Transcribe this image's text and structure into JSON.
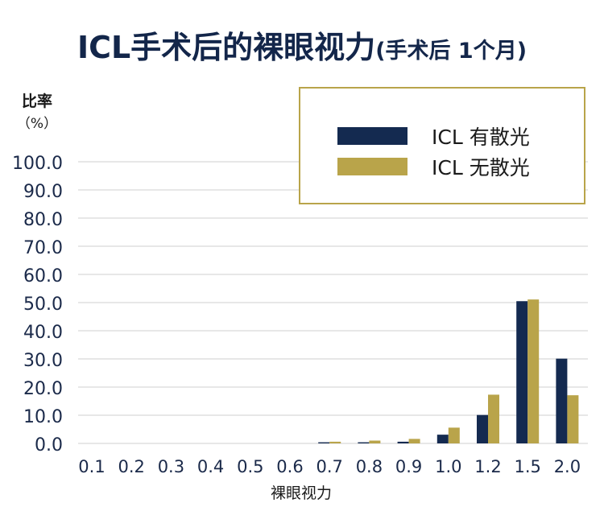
{
  "chart_data": {
    "type": "bar",
    "title": "ICL手术后的裸眼视力",
    "subtitle": "(手术后 1个月)",
    "ylabel": "比率",
    "yunit": "（%）",
    "xlabel": "裸眼视力",
    "categories": [
      "0.1",
      "0.2",
      "0.3",
      "0.4",
      "0.5",
      "0.6",
      "0.7",
      "0.8",
      "0.9",
      "1.0",
      "1.2",
      "1.5",
      "2.0"
    ],
    "series": [
      {
        "name": "ICL 有散光",
        "color": "#142a50",
        "values": [
          0,
          0,
          0,
          0,
          0,
          0,
          0.4,
          0.4,
          0.6,
          3.1,
          10.1,
          50.5,
          30.1
        ]
      },
      {
        "name": "ICL 无散光",
        "color": "#b9a44a",
        "values": [
          0,
          0,
          0,
          0,
          0,
          0,
          0.6,
          1.0,
          1.6,
          5.6,
          17.3,
          51.1,
          17.1
        ]
      }
    ],
    "ylim": [
      0,
      100
    ],
    "yticks": [
      "0.0",
      "10.0",
      "20.0",
      "30.0",
      "40.0",
      "50.0",
      "60.0",
      "70.0",
      "80.0",
      "90.0",
      "100.0"
    ],
    "grid": true,
    "legend_position": "top-right"
  }
}
